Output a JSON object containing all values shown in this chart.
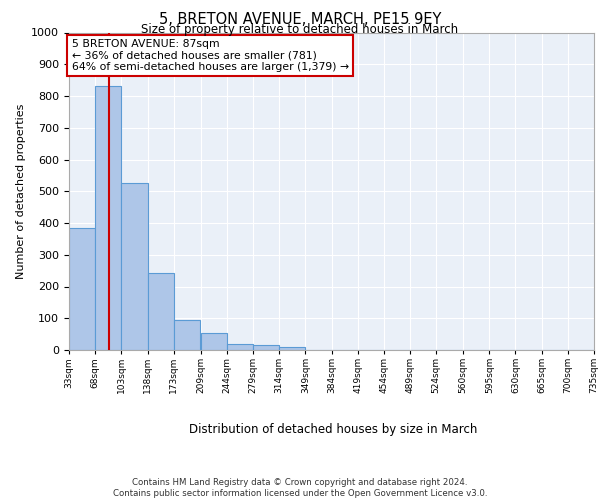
{
  "title": "5, BRETON AVENUE, MARCH, PE15 9EY",
  "subtitle": "Size of property relative to detached houses in March",
  "xlabel": "Distribution of detached houses by size in March",
  "ylabel": "Number of detached properties",
  "bin_labels": [
    "33sqm",
    "68sqm",
    "103sqm",
    "138sqm",
    "173sqm",
    "209sqm",
    "244sqm",
    "279sqm",
    "314sqm",
    "349sqm",
    "384sqm",
    "419sqm",
    "454sqm",
    "489sqm",
    "524sqm",
    "560sqm",
    "595sqm",
    "630sqm",
    "665sqm",
    "700sqm",
    "735sqm"
  ],
  "bin_edges": [
    33,
    68,
    103,
    138,
    173,
    209,
    244,
    279,
    314,
    349,
    384,
    419,
    454,
    489,
    524,
    560,
    595,
    630,
    665,
    700,
    735
  ],
  "bar_heights": [
    385,
    830,
    525,
    242,
    93,
    52,
    20,
    16,
    10,
    0,
    0,
    0,
    0,
    0,
    0,
    0,
    0,
    0,
    0,
    0
  ],
  "bar_color": "#aec6e8",
  "bar_edge_color": "#5b9bd5",
  "red_line_x": 87,
  "annotation_text": "5 BRETON AVENUE: 87sqm\n← 36% of detached houses are smaller (781)\n64% of semi-detached houses are larger (1,379) →",
  "ylim": [
    0,
    1000
  ],
  "yticks": [
    0,
    100,
    200,
    300,
    400,
    500,
    600,
    700,
    800,
    900,
    1000
  ],
  "footer_line1": "Contains HM Land Registry data © Crown copyright and database right 2024.",
  "footer_line2": "Contains public sector information licensed under the Open Government Licence v3.0.",
  "background_color": "#eaf0f8",
  "grid_color": "#ffffff",
  "annotation_box_edge": "#cc0000"
}
